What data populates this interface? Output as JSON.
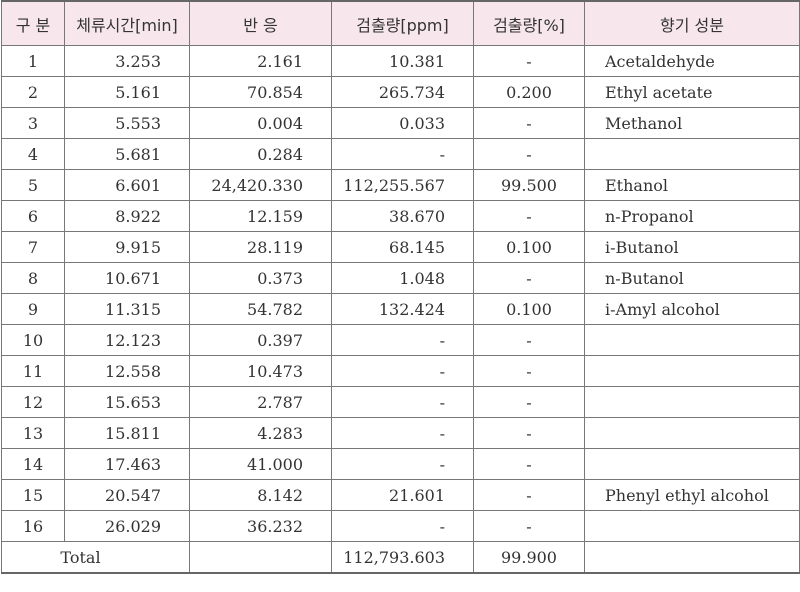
{
  "headers": [
    "구 분",
    "체류시간[min]",
    "반 응",
    "검출량[ppm]",
    "검출량[%]",
    "향기 성분"
  ],
  "rows": [
    {
      "no": "1",
      "rt": "3.253",
      "resp": "2.161",
      "ppm": "10.381",
      "pct": "-",
      "comp": "Acetaldehyde"
    },
    {
      "no": "2",
      "rt": "5.161",
      "resp": "70.854",
      "ppm": "265.734",
      "pct": "0.200",
      "comp": "Ethyl acetate"
    },
    {
      "no": "3",
      "rt": "5.553",
      "resp": "0.004",
      "ppm": "0.033",
      "pct": "-",
      "comp": "Methanol"
    },
    {
      "no": "4",
      "rt": "5.681",
      "resp": "0.284",
      "ppm": "-",
      "pct": "-",
      "comp": ""
    },
    {
      "no": "5",
      "rt": "6.601",
      "resp": "24,420.330",
      "ppm": "112,255.567",
      "pct": "99.500",
      "comp": "Ethanol"
    },
    {
      "no": "6",
      "rt": "8.922",
      "resp": "12.159",
      "ppm": "38.670",
      "pct": "-",
      "comp": "n-Propanol"
    },
    {
      "no": "7",
      "rt": "9.915",
      "resp": "28.119",
      "ppm": "68.145",
      "pct": "0.100",
      "comp": "i-Butanol"
    },
    {
      "no": "8",
      "rt": "10.671",
      "resp": "0.373",
      "ppm": "1.048",
      "pct": "-",
      "comp": "n-Butanol"
    },
    {
      "no": "9",
      "rt": "11.315",
      "resp": "54.782",
      "ppm": "132.424",
      "pct": "0.100",
      "comp": "i-Amyl alcohol"
    },
    {
      "no": "10",
      "rt": "12.123",
      "resp": "0.397",
      "ppm": "-",
      "pct": "-",
      "comp": ""
    },
    {
      "no": "11",
      "rt": "12.558",
      "resp": "10.473",
      "ppm": "-",
      "pct": "-",
      "comp": ""
    },
    {
      "no": "12",
      "rt": "15.653",
      "resp": "2.787",
      "ppm": "-",
      "pct": "-",
      "comp": ""
    },
    {
      "no": "13",
      "rt": "15.811",
      "resp": "4.283",
      "ppm": "-",
      "pct": "-",
      "comp": ""
    },
    {
      "no": "14",
      "rt": "17.463",
      "resp": "41.000",
      "ppm": "-",
      "pct": "-",
      "comp": ""
    },
    {
      "no": "15",
      "rt": "20.547",
      "resp": "8.142",
      "ppm": "21.601",
      "pct": "-",
      "comp": "Phenyl ethyl alcohol"
    },
    {
      "no": "16",
      "rt": "26.029",
      "resp": "36.232",
      "ppm": "-",
      "pct": "-",
      "comp": ""
    }
  ],
  "total": {
    "label": "Total",
    "rt": "",
    "resp": "",
    "ppm": "112,793.603",
    "pct": "99.900",
    "comp": ""
  }
}
